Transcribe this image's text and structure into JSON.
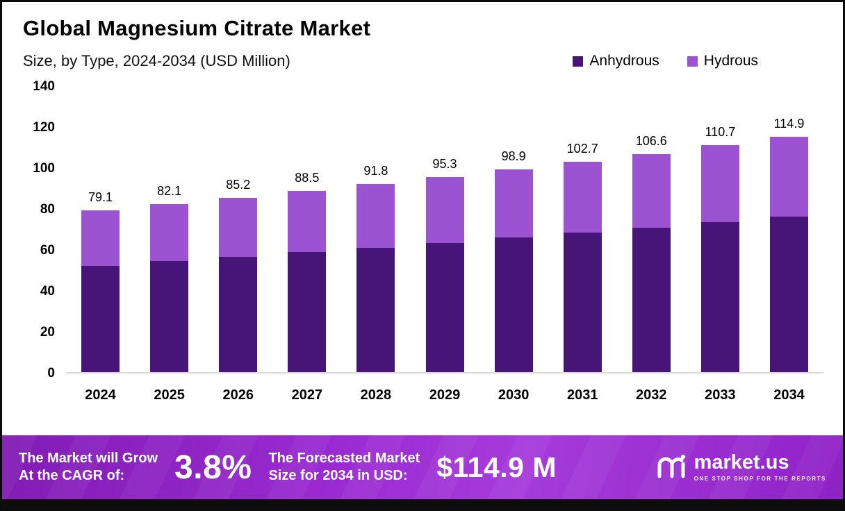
{
  "header": {
    "title": "Global Magnesium Citrate  Market",
    "subtitle": "Size, by Type, 2024-2034 (USD Million)"
  },
  "legend": [
    {
      "label": "Anhydrous",
      "color": "#471478"
    },
    {
      "label": "Hydrous",
      "color": "#9b53d2"
    }
  ],
  "chart_data": {
    "type": "bar",
    "stacked": true,
    "title": "Global Magnesium Citrate Market",
    "subtitle": "Size, by Type, 2024-2034 (USD Million)",
    "categories": [
      "2024",
      "2025",
      "2026",
      "2027",
      "2028",
      "2029",
      "2030",
      "2031",
      "2032",
      "2033",
      "2034"
    ],
    "series": [
      {
        "name": "Anhydrous",
        "color": "#471478",
        "values": [
          52.0,
          54.2,
          56.3,
          58.6,
          60.7,
          63.0,
          65.8,
          68.1,
          70.5,
          73.2,
          75.9
        ]
      },
      {
        "name": "Hydrous",
        "color": "#9b53d2",
        "values": [
          27.1,
          27.9,
          28.9,
          29.9,
          31.1,
          32.3,
          33.1,
          34.6,
          36.1,
          37.5,
          39.0
        ]
      }
    ],
    "totals": [
      "79.1",
      "82.1",
      "85.2",
      "88.5",
      "91.8",
      "95.3",
      "98.9",
      "102.7",
      "106.6",
      "110.7",
      "114.9"
    ],
    "ylabel": "USD Million",
    "ylim": [
      0,
      140
    ],
    "yticks": [
      0,
      20,
      40,
      60,
      80,
      100,
      120,
      140
    ],
    "grid": false,
    "legend_position": "top-right"
  },
  "footer": {
    "cagr_label_line1": "The Market will Grow",
    "cagr_label_line2": "At the CAGR of:",
    "cagr_value": "3.8%",
    "forecast_label_line1": "The Forecasted Market",
    "forecast_label_line2": "Size for 2034 in USD:",
    "forecast_value": "$114.9 M",
    "brand": "market.us",
    "brand_tagline": "ONE STOP SHOP FOR THE REPORTS"
  }
}
